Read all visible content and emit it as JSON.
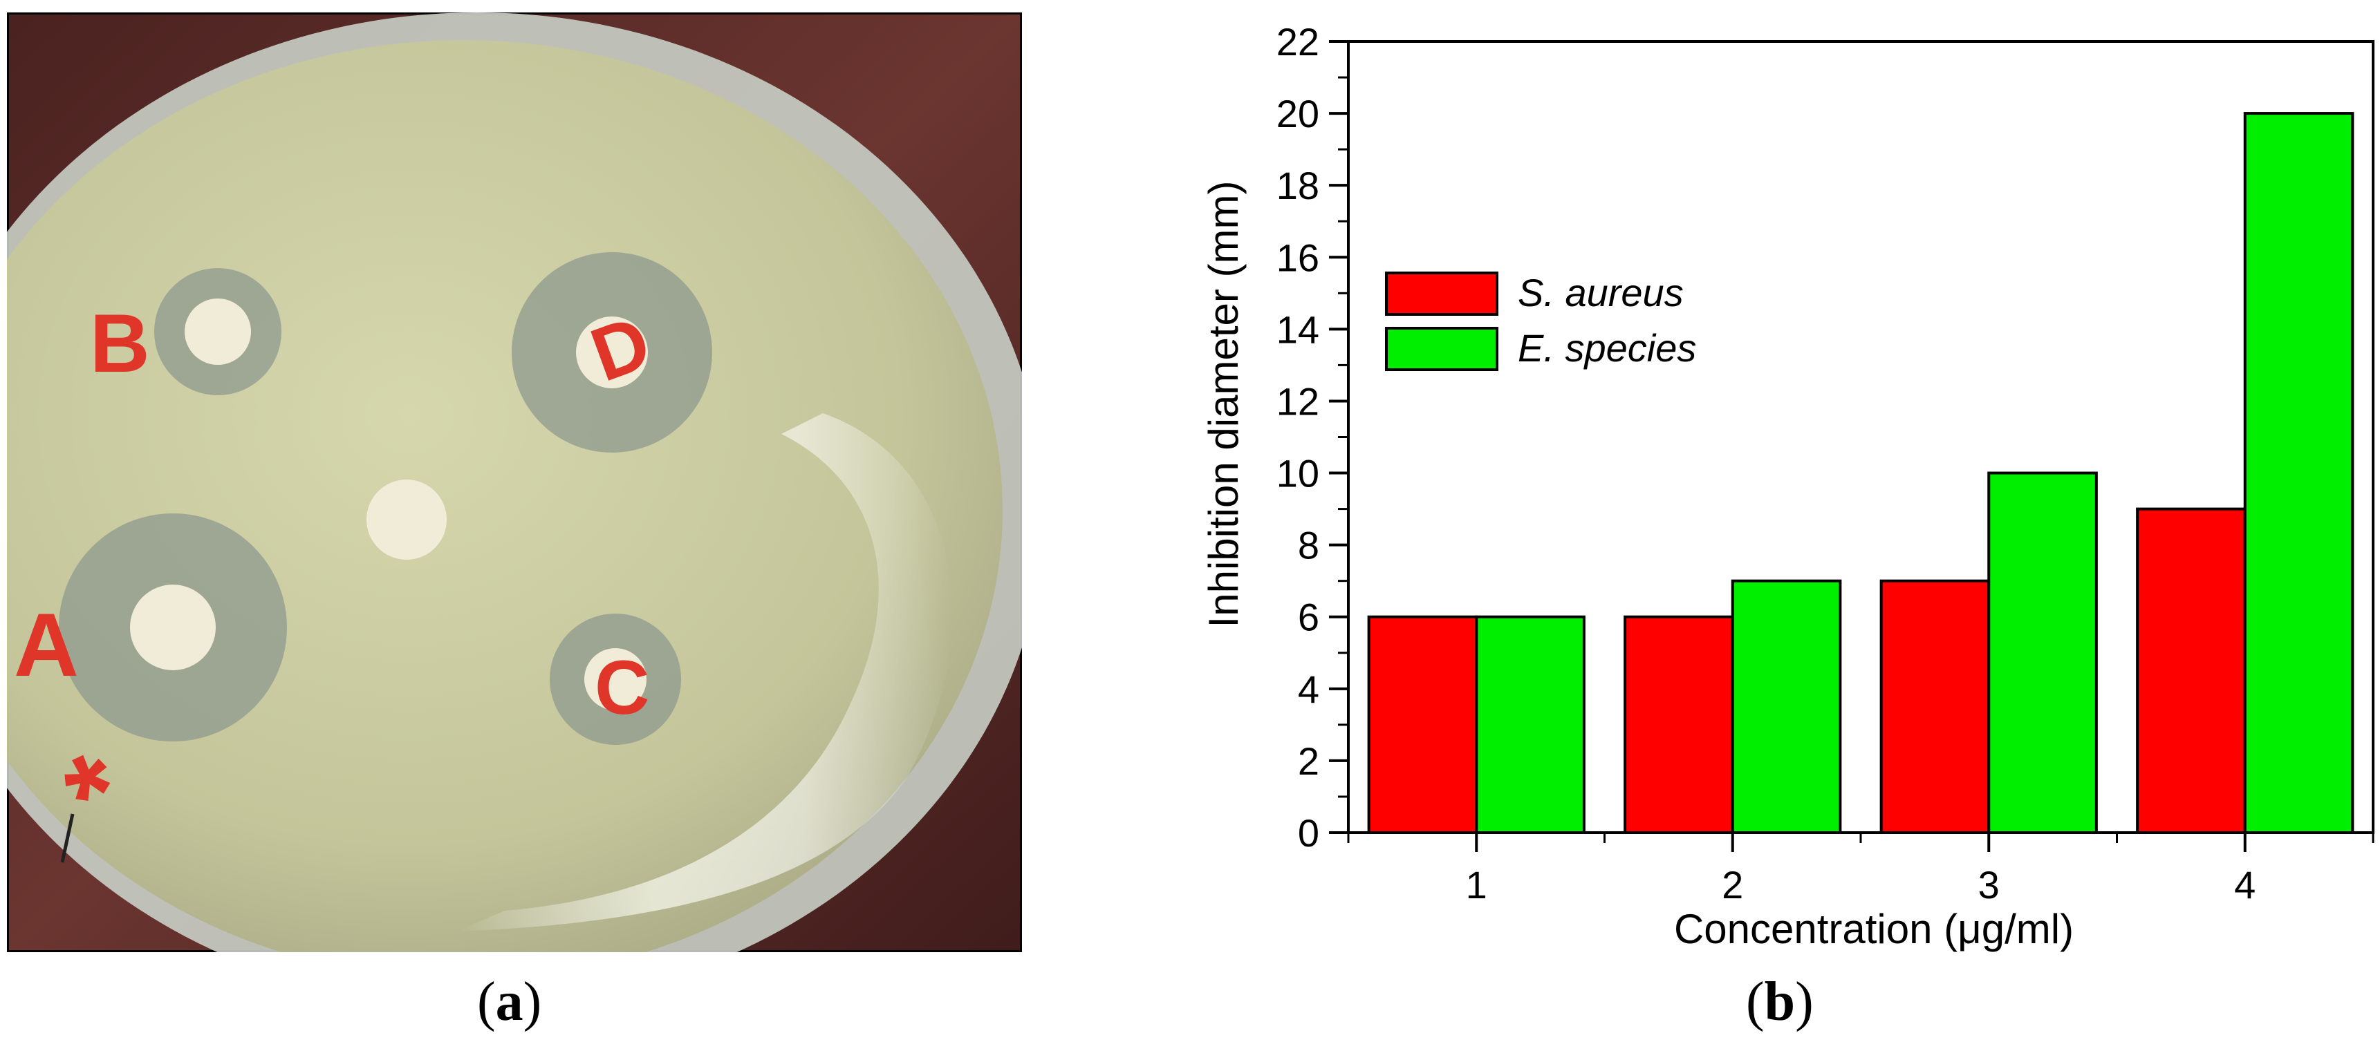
{
  "panels": {
    "a": {
      "label": "a",
      "photo": {
        "subject": "agar-plate-photo",
        "disk_labels": [
          "B",
          "D",
          "A",
          "C",
          "*"
        ]
      }
    },
    "b": {
      "label": "b"
    }
  },
  "colors": {
    "s_aureus": "#ff0000",
    "e_species": "#00ee00",
    "axis": "#000000"
  },
  "chart_data": {
    "type": "bar",
    "categories": [
      "1",
      "2",
      "3",
      "4"
    ],
    "series": [
      {
        "name": "S. aureus",
        "values": [
          6,
          6,
          7,
          9
        ]
      },
      {
        "name": "E. species",
        "values": [
          6,
          7,
          10,
          20
        ]
      }
    ],
    "title": "",
    "xlabel": "Concentration (μg/ml)",
    "ylabel": "Inhibition diameter (mm)",
    "ylim": [
      0,
      22
    ],
    "yticks": [
      0,
      2,
      4,
      6,
      8,
      10,
      12,
      14,
      16,
      18,
      20,
      22
    ],
    "grid": false,
    "legend": "top-left"
  }
}
